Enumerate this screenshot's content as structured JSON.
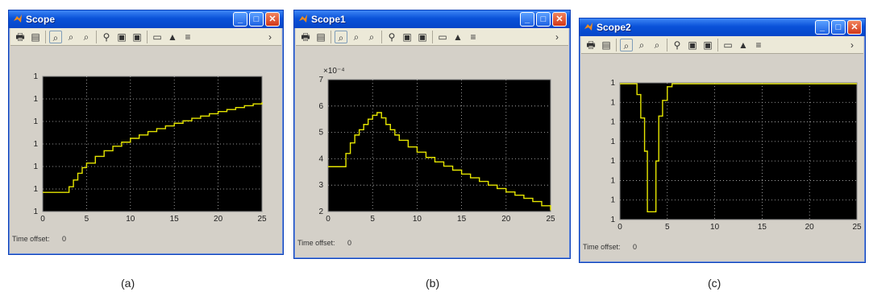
{
  "colors": {
    "titlebar": "#0a52d9",
    "plot_bg": "#000000",
    "trace": "#e6e600",
    "grid": "#bfbfbf",
    "window_bg": "#d4d0c8"
  },
  "window_controls": [
    "minimize-icon",
    "maximize-icon",
    "close-icon"
  ],
  "toolbar_icons": [
    "print-icon",
    "parameters-icon",
    "zoom-icon",
    "zoom-x-icon",
    "zoom-y-icon",
    "autoscale-icon",
    "save-axes-icon",
    "restore-axes-icon",
    "floating-scope-icon",
    "lock-axes-icon",
    "signal-selection-icon",
    "overflow-arrow-icon"
  ],
  "windows": [
    {
      "title": "Scope",
      "time_offset_label": "Time offset:",
      "time_offset_value": "0",
      "caption": "(a)"
    },
    {
      "title": "Scope1",
      "time_offset_label": "Time offset:",
      "time_offset_value": "0",
      "caption": "(b)"
    },
    {
      "title": "Scope2",
      "time_offset_label": "Time offset:",
      "time_offset_value": "0",
      "caption": "(c)"
    }
  ],
  "chart_data": [
    {
      "type": "line",
      "xlim": [
        0,
        25
      ],
      "ylim": [
        0,
        6
      ],
      "x_ticks": [
        "0",
        "5",
        "10",
        "15",
        "20",
        "25"
      ],
      "y_ticks": [
        "1",
        "1",
        "1",
        "1",
        "1",
        "1",
        "1"
      ],
      "grid": true,
      "step": true,
      "points": [
        [
          0,
          0.85
        ],
        [
          2.5,
          0.85
        ],
        [
          3,
          1.1
        ],
        [
          3.5,
          1.4
        ],
        [
          4,
          1.7
        ],
        [
          4.5,
          1.95
        ],
        [
          5,
          2.15
        ],
        [
          6,
          2.45
        ],
        [
          7,
          2.7
        ],
        [
          8,
          2.9
        ],
        [
          9,
          3.08
        ],
        [
          10,
          3.25
        ],
        [
          11,
          3.4
        ],
        [
          12,
          3.55
        ],
        [
          13,
          3.68
        ],
        [
          14,
          3.8
        ],
        [
          15,
          3.92
        ],
        [
          16,
          4.03
        ],
        [
          17,
          4.14
        ],
        [
          18,
          4.24
        ],
        [
          19,
          4.34
        ],
        [
          20,
          4.44
        ],
        [
          21,
          4.53
        ],
        [
          22,
          4.62
        ],
        [
          23,
          4.7
        ],
        [
          24,
          4.78
        ],
        [
          25,
          4.85
        ]
      ]
    },
    {
      "type": "line",
      "xlim": [
        0,
        25
      ],
      "ylim": [
        2,
        7
      ],
      "y_exponent": "×10⁻⁴",
      "x_ticks": [
        "0",
        "5",
        "10",
        "15",
        "20",
        "25"
      ],
      "y_ticks": [
        "2",
        "3",
        "4",
        "5",
        "6",
        "7"
      ],
      "grid": true,
      "step": true,
      "points": [
        [
          0,
          3.7
        ],
        [
          1.5,
          3.7
        ],
        [
          2,
          4.2
        ],
        [
          2.5,
          4.6
        ],
        [
          3,
          4.9
        ],
        [
          3.5,
          5.1
        ],
        [
          4,
          5.3
        ],
        [
          4.5,
          5.5
        ],
        [
          5,
          5.65
        ],
        [
          5.5,
          5.75
        ],
        [
          6,
          5.55
        ],
        [
          6.5,
          5.3
        ],
        [
          7,
          5.1
        ],
        [
          7.5,
          4.9
        ],
        [
          8,
          4.7
        ],
        [
          9,
          4.45
        ],
        [
          10,
          4.25
        ],
        [
          11,
          4.05
        ],
        [
          12,
          3.88
        ],
        [
          13,
          3.72
        ],
        [
          14,
          3.57
        ],
        [
          15,
          3.42
        ],
        [
          16,
          3.28
        ],
        [
          17,
          3.14
        ],
        [
          18,
          3.0
        ],
        [
          19,
          2.87
        ],
        [
          20,
          2.74
        ],
        [
          21,
          2.62
        ],
        [
          22,
          2.5
        ],
        [
          23,
          2.38
        ],
        [
          24,
          2.22
        ],
        [
          25,
          2.05
        ]
      ]
    },
    {
      "type": "line",
      "xlim": [
        0,
        25
      ],
      "ylim": [
        0,
        7
      ],
      "x_ticks": [
        "0",
        "5",
        "10",
        "15",
        "20",
        "25"
      ],
      "y_ticks": [
        "1",
        "1",
        "1",
        "1",
        "1",
        "1",
        "1",
        "1"
      ],
      "grid": true,
      "step": true,
      "points": [
        [
          0,
          6.95
        ],
        [
          1.5,
          6.95
        ],
        [
          1.8,
          6.4
        ],
        [
          2.2,
          5.2
        ],
        [
          2.6,
          3.5
        ],
        [
          2.9,
          0.4
        ],
        [
          3.2,
          0.4
        ],
        [
          3.5,
          0.4
        ],
        [
          3.8,
          3.0
        ],
        [
          4.1,
          5.3
        ],
        [
          4.5,
          6.1
        ],
        [
          5,
          6.8
        ],
        [
          5.5,
          6.95
        ],
        [
          25,
          6.95
        ]
      ]
    }
  ]
}
